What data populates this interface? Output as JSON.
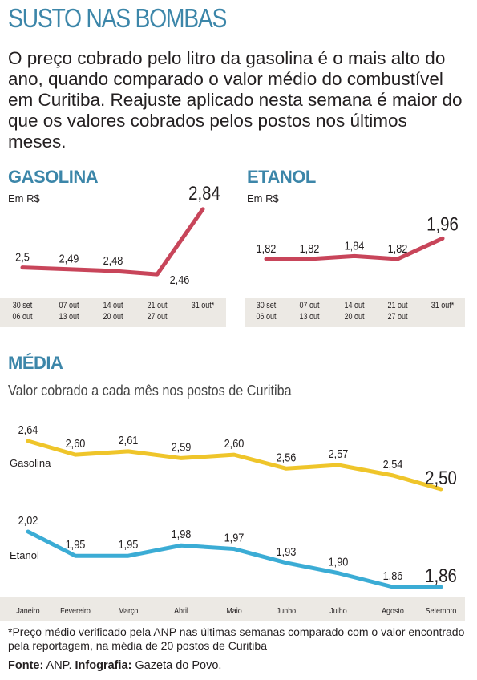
{
  "title": "SUSTO NAS BOMBAS",
  "intro": "O preço cobrado pelo litro da gasolina é o mais alto do ano, quando comparado o valor médio do combustível em Curitiba. Reajuste aplicado nesta semana é maior do que os valores cobrados pelos postos nos últimos meses.",
  "colors": {
    "accent": "#3c86a9",
    "gasolina_weekly": "#c8455a",
    "gasolina_monthly": "#efc52a",
    "etanol_monthly": "#3bacd5",
    "axis_band": "#ece9e4"
  },
  "chart_data": [
    {
      "type": "line",
      "title": "GASOLINA",
      "ylabel": "Em R$",
      "categories": [
        "30 set 06 out",
        "07 out 13 out",
        "14 out 20 out",
        "21 out 27 out",
        "31 out*"
      ],
      "tick_lines": [
        [
          "30 set",
          "06 out"
        ],
        [
          "07 out",
          "13 out"
        ],
        [
          "14 out",
          "20 out"
        ],
        [
          "21 out",
          "27 out"
        ],
        [
          "31 out*",
          ""
        ]
      ],
      "values": [
        2.5,
        2.49,
        2.48,
        2.46,
        2.84
      ],
      "labels": [
        "2,5",
        "2,49",
        "2,48",
        "2,46",
        "2,84"
      ],
      "ylim": [
        2.4,
        2.9
      ]
    },
    {
      "type": "line",
      "title": "ETANOL",
      "ylabel": "Em R$",
      "categories": [
        "30 set 06 out",
        "07 out 13 out",
        "14 out 20 out",
        "21 out 27 out",
        "31 out*"
      ],
      "tick_lines": [
        [
          "30 set",
          "06 out"
        ],
        [
          "07 out",
          "13 out"
        ],
        [
          "14 out",
          "20 out"
        ],
        [
          "21 out",
          "27 out"
        ],
        [
          "31 out*",
          ""
        ]
      ],
      "values": [
        1.82,
        1.82,
        1.84,
        1.82,
        1.96
      ],
      "labels": [
        "1,82",
        "1,82",
        "1,84",
        "1,82",
        "1,96"
      ],
      "ylim": [
        1.7,
        2.0
      ]
    },
    {
      "type": "line",
      "title": "MÉDIA",
      "subtitle": "Valor cobrado a cada mês nos postos de Curitiba",
      "categories": [
        "Janeiro",
        "Fevereiro",
        "Março",
        "Abril",
        "Maio",
        "Junho",
        "Julho",
        "Agosto",
        "Setembro"
      ],
      "series": [
        {
          "name": "Gasolina",
          "values": [
            2.64,
            2.6,
            2.61,
            2.59,
            2.6,
            2.56,
            2.57,
            2.54,
            2.5
          ],
          "labels": [
            "2,64",
            "2,60",
            "2,61",
            "2,59",
            "2,60",
            "2,56",
            "2,57",
            "2,54",
            "2,50"
          ]
        },
        {
          "name": "Etanol",
          "values": [
            2.02,
            1.95,
            1.95,
            1.98,
            1.97,
            1.93,
            1.9,
            1.86,
            1.86
          ],
          "labels": [
            "2,02",
            "1,95",
            "1,95",
            "1,98",
            "1,97",
            "1,93",
            "1,90",
            "1,86",
            "1,86"
          ]
        }
      ]
    }
  ],
  "footnote": "*Preço médio verificado pela ANP nas últimas semanas comparado com o valor encontrado pela reportagem, na média de 20 postos de Curitiba",
  "source": {
    "fonte_label": "Fonte:",
    "fonte_value": " ANP. ",
    "infografia_label": "Infografia:",
    "infografia_value": " Gazeta do Povo."
  }
}
